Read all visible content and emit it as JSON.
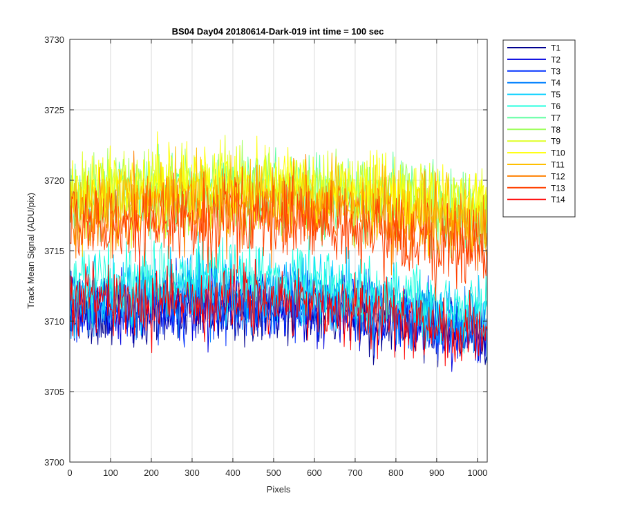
{
  "chart_data": {
    "type": "line",
    "title": "BS04 Day04 20180614-Dark-019 int time = 100 sec",
    "xlabel": "Pixels",
    "ylabel": "Track Mean Signal (ADU/pix)",
    "xlim": [
      0,
      1024
    ],
    "ylim": [
      3700,
      3730
    ],
    "xticks": [
      0,
      100,
      200,
      300,
      400,
      500,
      600,
      700,
      800,
      900,
      1000
    ],
    "yticks": [
      3700,
      3705,
      3710,
      3715,
      3720,
      3725,
      3730
    ],
    "grid": true,
    "legend_position": "outside-top-right",
    "series": [
      {
        "name": "T1",
        "color": "#00008F",
        "profile": {
          "x": [
            0,
            200,
            400,
            600,
            800,
            1024
          ],
          "y": [
            3710.2,
            3710.8,
            3711.0,
            3710.6,
            3709.9,
            3708.7
          ]
        },
        "noise": 1.2
      },
      {
        "name": "T2",
        "color": "#0000DF",
        "profile": {
          "x": [
            0,
            200,
            400,
            600,
            800,
            1024
          ],
          "y": [
            3710.5,
            3711.0,
            3711.2,
            3710.8,
            3710.1,
            3709.0
          ]
        },
        "noise": 1.2
      },
      {
        "name": "T3",
        "color": "#0030FF",
        "profile": {
          "x": [
            0,
            200,
            400,
            600,
            800,
            1024
          ],
          "y": [
            3710.8,
            3711.3,
            3711.5,
            3711.1,
            3710.4,
            3709.3
          ]
        },
        "noise": 1.2
      },
      {
        "name": "T4",
        "color": "#0080FF",
        "profile": {
          "x": [
            0,
            200,
            400,
            600,
            800,
            1024
          ],
          "y": [
            3711.0,
            3711.6,
            3711.8,
            3711.4,
            3710.7,
            3709.5
          ]
        },
        "noise": 1.2
      },
      {
        "name": "T5",
        "color": "#00CFFF",
        "profile": {
          "x": [
            0,
            200,
            400,
            600,
            800,
            1024
          ],
          "y": [
            3711.5,
            3712.2,
            3712.5,
            3712.0,
            3711.3,
            3710.0
          ]
        },
        "noise": 1.3
      },
      {
        "name": "T6",
        "color": "#20FFDF",
        "profile": {
          "x": [
            0,
            200,
            400,
            600,
            800,
            1024
          ],
          "y": [
            3712.5,
            3713.0,
            3713.2,
            3712.8,
            3712.0,
            3710.8
          ]
        },
        "noise": 1.3
      },
      {
        "name": "T7",
        "color": "#60FFA0",
        "profile": {
          "x": [
            0,
            200,
            400,
            600,
            800,
            1024
          ],
          "y": [
            3718.8,
            3719.2,
            3719.3,
            3719.1,
            3718.6,
            3717.2
          ]
        },
        "noise": 1.4
      },
      {
        "name": "T8",
        "color": "#A0FF60",
        "profile": {
          "x": [
            0,
            200,
            400,
            600,
            800,
            1024
          ],
          "y": [
            3719.0,
            3719.4,
            3719.5,
            3719.2,
            3718.8,
            3717.5
          ]
        },
        "noise": 1.4
      },
      {
        "name": "T9",
        "color": "#DFFF20",
        "profile": {
          "x": [
            0,
            200,
            400,
            600,
            800,
            1024
          ],
          "y": [
            3719.2,
            3719.6,
            3719.8,
            3719.5,
            3719.0,
            3717.8
          ]
        },
        "noise": 1.4
      },
      {
        "name": "T10",
        "color": "#FFFF00",
        "profile": {
          "x": [
            0,
            200,
            400,
            600,
            800,
            1024
          ],
          "y": [
            3719.0,
            3719.5,
            3719.7,
            3719.4,
            3718.8,
            3717.5
          ]
        },
        "noise": 1.4
      },
      {
        "name": "T11",
        "color": "#FFBF00",
        "profile": {
          "x": [
            0,
            200,
            400,
            600,
            800,
            1024
          ],
          "y": [
            3718.0,
            3718.6,
            3718.9,
            3718.7,
            3718.1,
            3716.8
          ]
        },
        "noise": 1.4
      },
      {
        "name": "T12",
        "color": "#FF8000",
        "profile": {
          "x": [
            0,
            200,
            400,
            600,
            800,
            1024
          ],
          "y": [
            3717.3,
            3717.9,
            3718.2,
            3717.9,
            3717.2,
            3715.9
          ]
        },
        "noise": 1.4
      },
      {
        "name": "T13",
        "color": "#FF4000",
        "profile": {
          "x": [
            0,
            200,
            400,
            600,
            800,
            1024
          ],
          "y": [
            3716.5,
            3717.0,
            3717.2,
            3716.9,
            3716.0,
            3714.6
          ]
        },
        "noise": 1.4
      },
      {
        "name": "T14",
        "color": "#FF0000",
        "profile": {
          "x": [
            0,
            200,
            400,
            600,
            800,
            1024
          ],
          "y": [
            3711.0,
            3711.5,
            3711.5,
            3711.0,
            3710.2,
            3709.0
          ]
        },
        "noise": 1.3
      }
    ]
  }
}
